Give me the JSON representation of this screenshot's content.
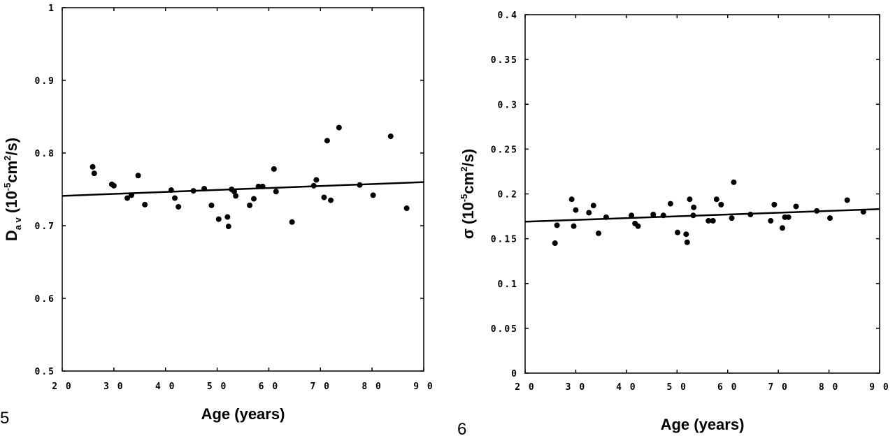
{
  "chart_data": [
    {
      "figure_label": "5",
      "type": "scatter",
      "xlabel": "Age (years)",
      "ylabel": {
        "symbol": "D",
        "subscript": "a v",
        "open": "(10",
        "exp": "-5",
        "mid": "cm",
        "exp2": "2",
        "close": "/s)"
      },
      "xlim": [
        20,
        90
      ],
      "ylim": [
        0.5,
        1.0
      ],
      "x_ticks": [
        "2 0",
        "3 0",
        "4 0",
        "5 0",
        "6 0",
        "7 0",
        "8 0",
        "9 0"
      ],
      "y_ticks": [
        "0.5",
        "0.6",
        "0.7",
        "0.8",
        "0.9",
        "1"
      ],
      "x_tick_values": [
        20,
        30,
        40,
        50,
        60,
        70,
        80,
        90
      ],
      "y_tick_values": [
        0.5,
        0.6,
        0.7,
        0.8,
        0.9,
        1.0
      ],
      "points": [
        [
          25.9,
          0.781
        ],
        [
          26.2,
          0.772
        ],
        [
          29.6,
          0.757
        ],
        [
          30.0,
          0.755
        ],
        [
          34.7,
          0.769
        ],
        [
          32.6,
          0.738
        ],
        [
          33.4,
          0.742
        ],
        [
          36.0,
          0.729
        ],
        [
          41.1,
          0.749
        ],
        [
          41.8,
          0.738
        ],
        [
          42.5,
          0.726
        ],
        [
          45.4,
          0.748
        ],
        [
          47.5,
          0.751
        ],
        [
          48.9,
          0.728
        ],
        [
          50.3,
          0.709
        ],
        [
          52.0,
          0.712
        ],
        [
          52.2,
          0.699
        ],
        [
          52.8,
          0.75
        ],
        [
          53.3,
          0.747
        ],
        [
          53.6,
          0.741
        ],
        [
          56.3,
          0.728
        ],
        [
          57.1,
          0.737
        ],
        [
          58.0,
          0.754
        ],
        [
          58.8,
          0.754
        ],
        [
          61.0,
          0.778
        ],
        [
          61.4,
          0.747
        ],
        [
          64.5,
          0.705
        ],
        [
          68.7,
          0.755
        ],
        [
          69.2,
          0.763
        ],
        [
          70.7,
          0.739
        ],
        [
          71.3,
          0.817
        ],
        [
          72.0,
          0.735
        ],
        [
          73.6,
          0.835
        ],
        [
          77.6,
          0.756
        ],
        [
          80.2,
          0.742
        ],
        [
          83.6,
          0.823
        ],
        [
          86.7,
          0.724
        ]
      ],
      "trendline": {
        "x": [
          20,
          90
        ],
        "y": [
          0.741,
          0.76
        ]
      }
    },
    {
      "figure_label": "6",
      "type": "scatter",
      "xlabel": "Age (years)",
      "ylabel": {
        "symbol": "σ",
        "subscript": "",
        "open": "(10",
        "exp": "-5",
        "mid": "cm",
        "exp2": "2",
        "close": "/s)"
      },
      "xlim": [
        20,
        90
      ],
      "ylim": [
        0,
        0.4
      ],
      "x_ticks": [
        "2 0",
        "3 0",
        "4 0",
        "5 0",
        "6 0",
        "7 0",
        "8 0",
        "9 0"
      ],
      "y_ticks": [
        "0",
        "0.05",
        "0.1",
        "0.15",
        "0.2",
        "0.25",
        "0.3",
        "0.35",
        "0.4"
      ],
      "x_tick_values": [
        20,
        30,
        40,
        50,
        60,
        70,
        80,
        90
      ],
      "y_tick_values": [
        0,
        0.05,
        0.1,
        0.15,
        0.2,
        0.25,
        0.3,
        0.35,
        0.4
      ],
      "points": [
        [
          25.9,
          0.145
        ],
        [
          26.3,
          0.165
        ],
        [
          29.2,
          0.194
        ],
        [
          29.6,
          0.164
        ],
        [
          30.0,
          0.182
        ],
        [
          32.6,
          0.179
        ],
        [
          33.5,
          0.187
        ],
        [
          34.5,
          0.156
        ],
        [
          36.0,
          0.174
        ],
        [
          41.0,
          0.176
        ],
        [
          41.7,
          0.167
        ],
        [
          42.3,
          0.164
        ],
        [
          45.3,
          0.177
        ],
        [
          47.3,
          0.176
        ],
        [
          48.7,
          0.189
        ],
        [
          50.1,
          0.157
        ],
        [
          51.8,
          0.155
        ],
        [
          52.0,
          0.146
        ],
        [
          52.5,
          0.194
        ],
        [
          53.2,
          0.176
        ],
        [
          53.3,
          0.185
        ],
        [
          56.2,
          0.17
        ],
        [
          57.1,
          0.17
        ],
        [
          57.8,
          0.194
        ],
        [
          58.7,
          0.188
        ],
        [
          60.8,
          0.173
        ],
        [
          61.2,
          0.213
        ],
        [
          64.5,
          0.177
        ],
        [
          68.5,
          0.17
        ],
        [
          69.2,
          0.188
        ],
        [
          70.8,
          0.162
        ],
        [
          71.3,
          0.174
        ],
        [
          72.0,
          0.174
        ],
        [
          73.5,
          0.186
        ],
        [
          77.6,
          0.181
        ],
        [
          80.2,
          0.173
        ],
        [
          83.6,
          0.193
        ],
        [
          86.8,
          0.18
        ]
      ],
      "trendline": {
        "x": [
          20,
          90
        ],
        "y": [
          0.169,
          0.183
        ]
      }
    }
  ]
}
